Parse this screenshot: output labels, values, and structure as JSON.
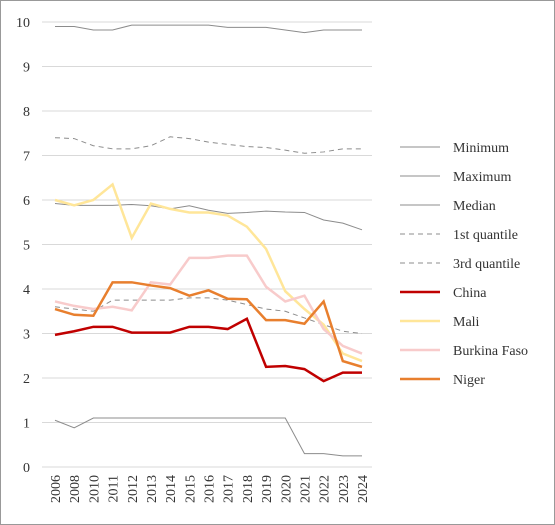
{
  "chart_data": {
    "type": "line",
    "categories": [
      "2006",
      "2008",
      "2010",
      "2011",
      "2012",
      "2013",
      "2014",
      "2015",
      "2016",
      "2017",
      "2018",
      "2019",
      "2020",
      "2021",
      "2022",
      "2023",
      "2024"
    ],
    "ylim": [
      0,
      10
    ],
    "yticks": [
      0,
      1,
      2,
      3,
      4,
      5,
      6,
      7,
      8,
      9,
      10
    ],
    "grid": true,
    "legend": "right",
    "series": [
      {
        "name": "Minimum",
        "color": "#8c8c8c",
        "dash": false,
        "width": 1,
        "values": [
          1.05,
          0.88,
          1.1,
          1.1,
          1.1,
          1.1,
          1.1,
          1.1,
          1.1,
          1.1,
          1.1,
          1.1,
          1.1,
          0.3,
          0.3,
          0.25,
          0.25
        ]
      },
      {
        "name": "Maximum",
        "color": "#8c8c8c",
        "dash": false,
        "width": 1,
        "values": [
          9.9,
          9.9,
          9.82,
          9.82,
          9.93,
          9.93,
          9.93,
          9.93,
          9.93,
          9.88,
          9.88,
          9.88,
          9.82,
          9.76,
          9.82,
          9.82,
          9.82
        ]
      },
      {
        "name": "Median",
        "color": "#8c8c8c",
        "dash": false,
        "width": 1,
        "values": [
          5.92,
          5.88,
          5.88,
          5.88,
          5.9,
          5.87,
          5.8,
          5.87,
          5.77,
          5.7,
          5.72,
          5.75,
          5.73,
          5.72,
          5.55,
          5.48,
          5.33
        ]
      },
      {
        "name": "1st quantile",
        "color": "#8c8c8c",
        "dash": true,
        "width": 1,
        "values": [
          3.6,
          3.55,
          3.5,
          3.75,
          3.75,
          3.75,
          3.75,
          3.8,
          3.8,
          3.75,
          3.65,
          3.55,
          3.5,
          3.35,
          3.2,
          3.05,
          3.0
        ]
      },
      {
        "name": "3rd quantile",
        "color": "#8c8c8c",
        "dash": true,
        "width": 1,
        "values": [
          7.4,
          7.38,
          7.22,
          7.15,
          7.15,
          7.22,
          7.42,
          7.38,
          7.3,
          7.25,
          7.2,
          7.18,
          7.12,
          7.05,
          7.08,
          7.15,
          7.15
        ]
      },
      {
        "name": "China",
        "color": "#c00000",
        "dash": false,
        "width": 2.5,
        "values": [
          2.97,
          3.05,
          3.15,
          3.15,
          3.02,
          3.02,
          3.02,
          3.15,
          3.15,
          3.1,
          3.33,
          2.25,
          2.27,
          2.2,
          1.93,
          2.12,
          2.12
        ]
      },
      {
        "name": "Mali",
        "color": "#ffe699",
        "dash": false,
        "width": 2.5,
        "values": [
          6.0,
          5.88,
          6.0,
          6.35,
          5.15,
          5.92,
          5.8,
          5.72,
          5.72,
          5.65,
          5.4,
          4.9,
          3.95,
          3.55,
          3.2,
          2.55,
          2.38
        ]
      },
      {
        "name": "Burkina Faso",
        "color": "#f8cbcb",
        "dash": false,
        "width": 2.5,
        "values": [
          3.72,
          3.62,
          3.55,
          3.6,
          3.52,
          4.15,
          4.1,
          4.7,
          4.7,
          4.75,
          4.75,
          4.05,
          3.72,
          3.85,
          3.1,
          2.72,
          2.55
        ]
      },
      {
        "name": "Niger",
        "color": "#e87f2e",
        "dash": false,
        "width": 2.5,
        "values": [
          3.55,
          3.42,
          3.4,
          4.15,
          4.15,
          4.08,
          4.02,
          3.85,
          3.97,
          3.78,
          3.77,
          3.3,
          3.3,
          3.22,
          3.72,
          2.38,
          2.25
        ]
      }
    ]
  }
}
